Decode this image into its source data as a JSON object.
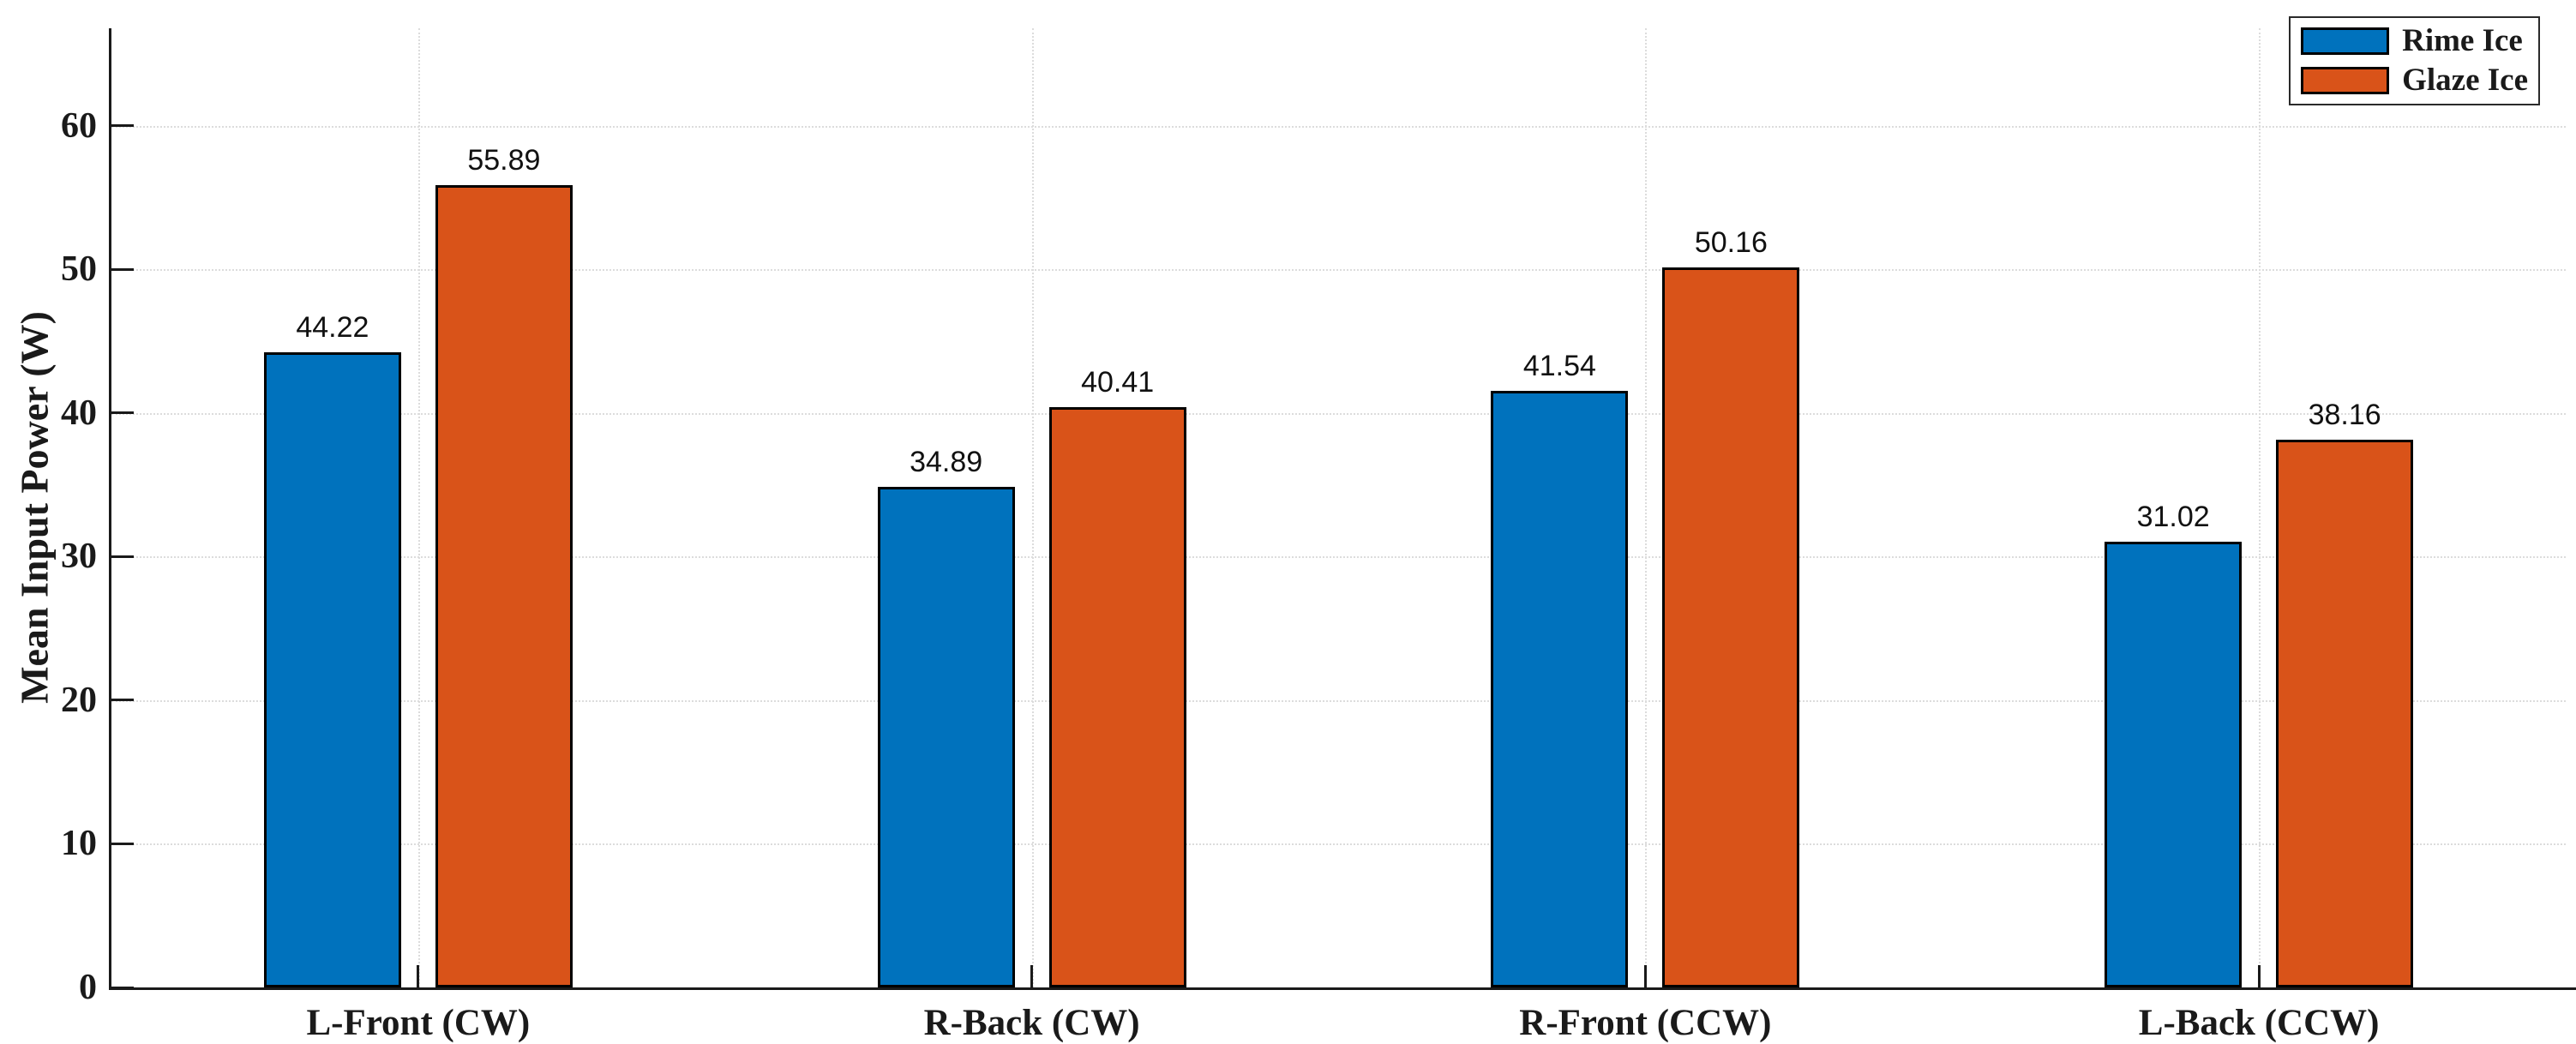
{
  "chart_data": {
    "type": "bar",
    "title": "",
    "xlabel": "",
    "ylabel": "Mean Input Power (W)",
    "categories": [
      "L-Front (CW)",
      "R-Back (CW)",
      "R-Front (CCW)",
      "L-Back (CCW)"
    ],
    "series": [
      {
        "name": "Rime Ice",
        "color": "#0072BD",
        "values": [
          44.22,
          34.89,
          41.54,
          31.02
        ]
      },
      {
        "name": "Glaze Ice",
        "color": "#D95319",
        "values": [
          55.89,
          40.41,
          50.16,
          38.16
        ]
      }
    ],
    "value_labels": [
      "44.22",
      "55.89",
      "34.89",
      "40.41",
      "41.54",
      "50.16",
      "31.02",
      "38.16"
    ],
    "ylim": [
      0,
      66.8
    ],
    "yticks": [
      0,
      10,
      20,
      30,
      40,
      50,
      60
    ],
    "grid": "dotted",
    "grid_color": "#dcdcdc",
    "axis_color": "#1a1a1a",
    "bar_edge_color": "#000000",
    "legend": {
      "position": "top-right",
      "entries": [
        "Rime Ice",
        "Glaze Ice"
      ]
    }
  }
}
